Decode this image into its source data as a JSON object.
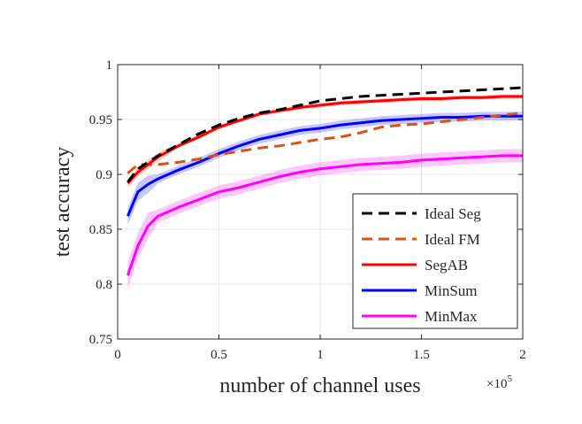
{
  "chart_data": {
    "type": "line",
    "title": "",
    "xlabel": "number of channel uses",
    "ylabel": "test accuracy",
    "x_exponent_label": "×10",
    "x_exponent_power": "5",
    "xlim": [
      0,
      2
    ],
    "ylim": [
      0.75,
      1
    ],
    "xticks": [
      0,
      0.5,
      1,
      1.5,
      2
    ],
    "xtick_labels": [
      "0",
      "0.5",
      "1",
      "1.5",
      "2"
    ],
    "yticks": [
      0.75,
      0.8,
      0.85,
      0.9,
      0.95,
      1
    ],
    "ytick_labels": [
      "0.75",
      "0.8",
      "0.85",
      "0.9",
      "0.95",
      "1"
    ],
    "grid": true,
    "legend_position": "bottom-right",
    "series": [
      {
        "name": "Ideal Seg",
        "color": "#000000",
        "dash": "dashed",
        "x": [
          0.05,
          0.1,
          0.2,
          0.3,
          0.4,
          0.5,
          0.6,
          0.7,
          0.8,
          0.9,
          1.0,
          1.1,
          1.2,
          1.3,
          1.4,
          1.5,
          1.6,
          1.7,
          1.8,
          1.9,
          2.0
        ],
        "y": [
          0.893,
          0.905,
          0.917,
          0.927,
          0.937,
          0.945,
          0.951,
          0.956,
          0.959,
          0.963,
          0.967,
          0.969,
          0.971,
          0.972,
          0.973,
          0.974,
          0.975,
          0.976,
          0.977,
          0.978,
          0.979
        ]
      },
      {
        "name": "Ideal FM",
        "color": "#d95319",
        "dash": "dashed",
        "x": [
          0.05,
          0.1,
          0.2,
          0.3,
          0.4,
          0.5,
          0.6,
          0.7,
          0.8,
          0.9,
          1.0,
          1.1,
          1.2,
          1.3,
          1.4,
          1.5,
          1.6,
          1.7,
          1.8,
          1.9,
          2.0
        ],
        "y": [
          0.901,
          0.909,
          0.909,
          0.911,
          0.914,
          0.918,
          0.921,
          0.924,
          0.926,
          0.929,
          0.932,
          0.934,
          0.938,
          0.943,
          0.945,
          0.946,
          0.948,
          0.95,
          0.952,
          0.954,
          0.956
        ]
      },
      {
        "name": "SegAB",
        "color": "#ff0000",
        "dash": "solid",
        "x": [
          0.05,
          0.1,
          0.2,
          0.3,
          0.4,
          0.5,
          0.6,
          0.7,
          0.8,
          0.9,
          1.0,
          1.1,
          1.2,
          1.3,
          1.4,
          1.5,
          1.6,
          1.7,
          1.8,
          1.9,
          2.0
        ],
        "y": [
          0.892,
          0.902,
          0.916,
          0.926,
          0.934,
          0.943,
          0.949,
          0.955,
          0.958,
          0.961,
          0.963,
          0.965,
          0.966,
          0.967,
          0.968,
          0.969,
          0.969,
          0.97,
          0.97,
          0.971,
          0.971
        ]
      },
      {
        "name": "MinSum",
        "color": "#0000ff",
        "dash": "solid",
        "x": [
          0.05,
          0.1,
          0.15,
          0.2,
          0.3,
          0.4,
          0.5,
          0.6,
          0.7,
          0.8,
          0.9,
          1.0,
          1.1,
          1.2,
          1.3,
          1.4,
          1.5,
          1.6,
          1.7,
          1.8,
          1.9,
          2.0
        ],
        "y": [
          0.862,
          0.884,
          0.891,
          0.896,
          0.904,
          0.911,
          0.919,
          0.926,
          0.932,
          0.936,
          0.94,
          0.942,
          0.945,
          0.947,
          0.949,
          0.95,
          0.951,
          0.952,
          0.952,
          0.953,
          0.953,
          0.953
        ]
      },
      {
        "name": "MinMax",
        "color": "#ff00ff",
        "dash": "solid",
        "x": [
          0.05,
          0.1,
          0.15,
          0.2,
          0.3,
          0.4,
          0.5,
          0.6,
          0.7,
          0.8,
          0.9,
          1.0,
          1.1,
          1.2,
          1.3,
          1.4,
          1.5,
          1.6,
          1.7,
          1.8,
          1.9,
          2.0
        ],
        "y": [
          0.808,
          0.835,
          0.853,
          0.862,
          0.87,
          0.877,
          0.884,
          0.888,
          0.893,
          0.898,
          0.902,
          0.905,
          0.907,
          0.909,
          0.91,
          0.911,
          0.913,
          0.914,
          0.915,
          0.916,
          0.917,
          0.917
        ]
      }
    ]
  }
}
